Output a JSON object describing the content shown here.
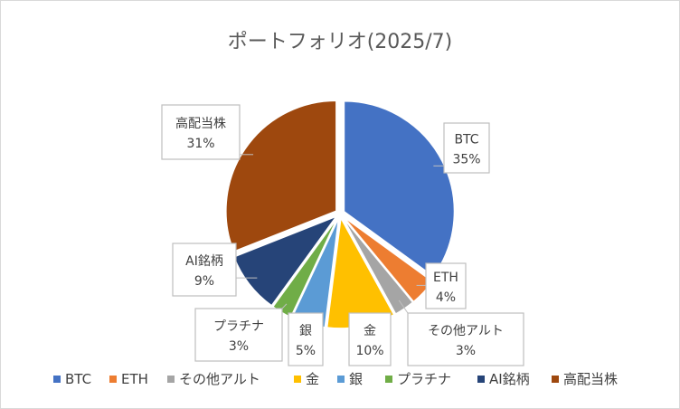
{
  "chart_data": {
    "type": "pie",
    "title": "ポートフォリオ(2025/7)",
    "categories": [
      "BTC",
      "ETH",
      "その他アルト",
      "金",
      "銀",
      "プラチナ",
      "AI銘柄",
      "高配当株"
    ],
    "values": [
      35,
      4,
      3,
      10,
      5,
      3,
      9,
      31
    ],
    "data_labels": [
      "35%",
      "4%",
      "3%",
      "10%",
      "5%",
      "3%",
      "9%",
      "31%"
    ],
    "colors": [
      "#4472C4",
      "#ED7D31",
      "#A5A5A5",
      "#FFC000",
      "#5B9BD5",
      "#70AD47",
      "#264478",
      "#9E480E"
    ],
    "legend_position": "bottom",
    "exploded": true
  }
}
